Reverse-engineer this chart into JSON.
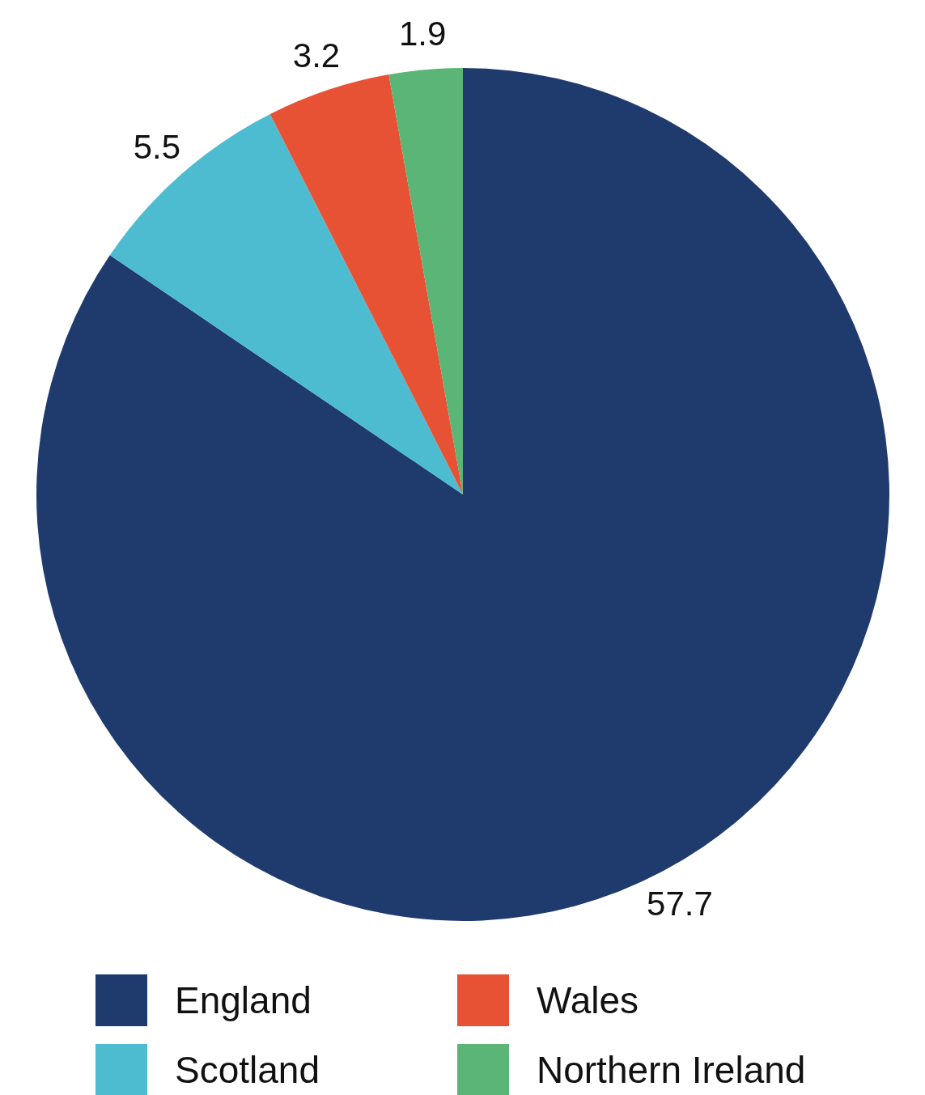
{
  "chart_data": {
    "type": "pie",
    "categories": [
      "England",
      "Scotland",
      "Wales",
      "Northern Ireland"
    ],
    "values": [
      57.7,
      5.5,
      3.2,
      1.9
    ],
    "colors": [
      "#1f3b6e",
      "#4dbcd1",
      "#e85234",
      "#5bb577"
    ],
    "data_labels": true,
    "legend": "bottom"
  }
}
